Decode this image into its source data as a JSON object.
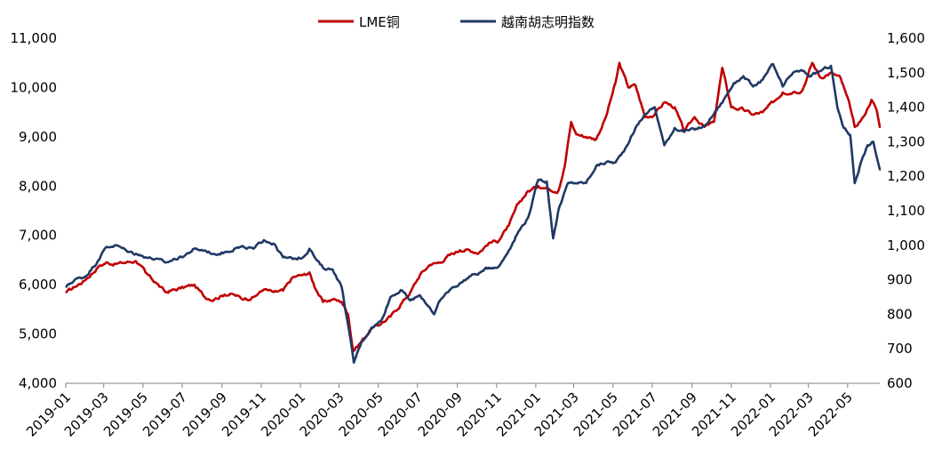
{
  "chart_data": {
    "type": "line",
    "title": "",
    "xlabel": "",
    "ylabel": "",
    "y2label": "",
    "grid": false,
    "legend_position": "top",
    "x_tick_labels": [
      "2019-01",
      "2019-03",
      "2019-05",
      "2019-07",
      "2019-09",
      "2019-11",
      "2020-01",
      "2020-03",
      "2020-05",
      "2020-07",
      "2020-09",
      "2020-11",
      "2021-01",
      "2021-03",
      "2021-05",
      "2021-07",
      "2021-09",
      "2021-11",
      "2022-01",
      "2022-03",
      "2022-05"
    ],
    "x_range": [
      "2019-01-01",
      "2022-06-20"
    ],
    "left_axis": {
      "ylim": [
        4000,
        11000
      ],
      "ticks": [
        4000,
        5000,
        6000,
        7000,
        8000,
        9000,
        10000,
        11000
      ],
      "tick_labels": [
        "4,000",
        "5,000",
        "6,000",
        "7,000",
        "8,000",
        "9,000",
        "10,000",
        "11,000"
      ]
    },
    "right_axis": {
      "ylim": [
        600,
        1600
      ],
      "ticks": [
        600,
        700,
        800,
        900,
        1000,
        1100,
        1200,
        1300,
        1400,
        1500,
        1600
      ],
      "tick_labels": [
        "600",
        "700",
        "800",
        "900",
        "1,000",
        "1,100",
        "1,200",
        "1,300",
        "1,400",
        "1,500",
        "1,600"
      ]
    },
    "series": [
      {
        "name": "LME铜",
        "axis": "left",
        "color": "#C00000",
        "points": [
          [
            "2019-01-02",
            5850
          ],
          [
            "2019-01-15",
            5950
          ],
          [
            "2019-02-01",
            6100
          ],
          [
            "2019-02-20",
            6350
          ],
          [
            "2019-03-05",
            6450
          ],
          [
            "2019-03-20",
            6420
          ],
          [
            "2019-04-05",
            6450
          ],
          [
            "2019-04-20",
            6480
          ],
          [
            "2019-05-05",
            6250
          ],
          [
            "2019-05-20",
            6050
          ],
          [
            "2019-06-05",
            5850
          ],
          [
            "2019-06-20",
            5900
          ],
          [
            "2019-07-05",
            5950
          ],
          [
            "2019-07-20",
            6000
          ],
          [
            "2019-08-05",
            5750
          ],
          [
            "2019-08-20",
            5700
          ],
          [
            "2019-09-05",
            5800
          ],
          [
            "2019-09-20",
            5800
          ],
          [
            "2019-10-05",
            5700
          ],
          [
            "2019-10-20",
            5750
          ],
          [
            "2019-11-05",
            5900
          ],
          [
            "2019-11-20",
            5850
          ],
          [
            "2019-12-05",
            5880
          ],
          [
            "2019-12-20",
            6150
          ],
          [
            "2020-01-05",
            6200
          ],
          [
            "2020-01-15",
            6250
          ],
          [
            "2020-01-25",
            5900
          ],
          [
            "2020-02-05",
            5650
          ],
          [
            "2020-02-20",
            5700
          ],
          [
            "2020-03-05",
            5650
          ],
          [
            "2020-03-15",
            5400
          ],
          [
            "2020-03-23",
            4650
          ],
          [
            "2020-04-05",
            4850
          ],
          [
            "2020-04-20",
            5100
          ],
          [
            "2020-05-05",
            5200
          ],
          [
            "2020-05-20",
            5350
          ],
          [
            "2020-06-05",
            5600
          ],
          [
            "2020-06-20",
            5850
          ],
          [
            "2020-07-05",
            6200
          ],
          [
            "2020-07-20",
            6400
          ],
          [
            "2020-08-05",
            6450
          ],
          [
            "2020-08-20",
            6600
          ],
          [
            "2020-09-05",
            6700
          ],
          [
            "2020-09-20",
            6700
          ],
          [
            "2020-10-05",
            6650
          ],
          [
            "2020-10-20",
            6850
          ],
          [
            "2020-11-05",
            6900
          ],
          [
            "2020-11-20",
            7200
          ],
          [
            "2020-12-05",
            7650
          ],
          [
            "2020-12-20",
            7900
          ],
          [
            "2021-01-05",
            8000
          ],
          [
            "2021-01-20",
            7950
          ],
          [
            "2021-02-05",
            7900
          ],
          [
            "2021-02-15",
            8400
          ],
          [
            "2021-02-25",
            9300
          ],
          [
            "2021-03-05",
            9050
          ],
          [
            "2021-03-20",
            9000
          ],
          [
            "2021-04-05",
            8950
          ],
          [
            "2021-04-20",
            9400
          ],
          [
            "2021-05-05",
            10100
          ],
          [
            "2021-05-11",
            10500
          ],
          [
            "2021-05-25",
            10000
          ],
          [
            "2021-06-05",
            10050
          ],
          [
            "2021-06-20",
            9400
          ],
          [
            "2021-07-05",
            9450
          ],
          [
            "2021-07-20",
            9700
          ],
          [
            "2021-08-05",
            9600
          ],
          [
            "2021-08-20",
            9100
          ],
          [
            "2021-09-05",
            9400
          ],
          [
            "2021-09-20",
            9200
          ],
          [
            "2021-10-05",
            9300
          ],
          [
            "2021-10-18",
            10400
          ],
          [
            "2021-11-01",
            9600
          ],
          [
            "2021-11-20",
            9550
          ],
          [
            "2021-12-05",
            9450
          ],
          [
            "2021-12-20",
            9500
          ],
          [
            "2022-01-05",
            9700
          ],
          [
            "2022-01-20",
            9900
          ],
          [
            "2022-02-05",
            9900
          ],
          [
            "2022-02-20",
            9950
          ],
          [
            "2022-03-07",
            10500
          ],
          [
            "2022-03-20",
            10200
          ],
          [
            "2022-04-05",
            10300
          ],
          [
            "2022-04-20",
            10200
          ],
          [
            "2022-05-05",
            9600
          ],
          [
            "2022-05-12",
            9200
          ],
          [
            "2022-05-25",
            9400
          ],
          [
            "2022-06-07",
            9750
          ],
          [
            "2022-06-15",
            9550
          ],
          [
            "2022-06-20",
            9200
          ]
        ]
      },
      {
        "name": "越南胡志明指数",
        "axis": "right",
        "color": "#203864",
        "points": [
          [
            "2019-01-02",
            880
          ],
          [
            "2019-01-15",
            900
          ],
          [
            "2019-02-01",
            910
          ],
          [
            "2019-02-20",
            955
          ],
          [
            "2019-03-05",
            995
          ],
          [
            "2019-03-20",
            1000
          ],
          [
            "2019-04-05",
            985
          ],
          [
            "2019-04-20",
            975
          ],
          [
            "2019-05-05",
            965
          ],
          [
            "2019-05-20",
            960
          ],
          [
            "2019-06-05",
            950
          ],
          [
            "2019-06-20",
            960
          ],
          [
            "2019-07-05",
            970
          ],
          [
            "2019-07-20",
            990
          ],
          [
            "2019-08-05",
            985
          ],
          [
            "2019-08-20",
            975
          ],
          [
            "2019-09-05",
            980
          ],
          [
            "2019-09-20",
            990
          ],
          [
            "2019-10-05",
            995
          ],
          [
            "2019-10-20",
            990
          ],
          [
            "2019-11-05",
            1015
          ],
          [
            "2019-11-20",
            1005
          ],
          [
            "2019-12-05",
            965
          ],
          [
            "2019-12-20",
            960
          ],
          [
            "2020-01-05",
            965
          ],
          [
            "2020-01-15",
            990
          ],
          [
            "2020-01-25",
            960
          ],
          [
            "2020-02-05",
            935
          ],
          [
            "2020-02-20",
            930
          ],
          [
            "2020-03-05",
            880
          ],
          [
            "2020-03-15",
            770
          ],
          [
            "2020-03-24",
            660
          ],
          [
            "2020-04-05",
            720
          ],
          [
            "2020-04-20",
            760
          ],
          [
            "2020-05-05",
            780
          ],
          [
            "2020-05-20",
            850
          ],
          [
            "2020-06-05",
            870
          ],
          [
            "2020-06-20",
            840
          ],
          [
            "2020-07-05",
            855
          ],
          [
            "2020-07-20",
            820
          ],
          [
            "2020-07-27",
            800
          ],
          [
            "2020-08-05",
            840
          ],
          [
            "2020-08-20",
            870
          ],
          [
            "2020-09-05",
            890
          ],
          [
            "2020-09-20",
            910
          ],
          [
            "2020-10-05",
            920
          ],
          [
            "2020-10-20",
            935
          ],
          [
            "2020-11-05",
            940
          ],
          [
            "2020-11-20",
            985
          ],
          [
            "2020-12-05",
            1040
          ],
          [
            "2020-12-20",
            1080
          ],
          [
            "2021-01-05",
            1190
          ],
          [
            "2021-01-18",
            1185
          ],
          [
            "2021-01-28",
            1020
          ],
          [
            "2021-02-05",
            1100
          ],
          [
            "2021-02-20",
            1180
          ],
          [
            "2021-03-05",
            1180
          ],
          [
            "2021-03-20",
            1180
          ],
          [
            "2021-04-05",
            1230
          ],
          [
            "2021-04-20",
            1240
          ],
          [
            "2021-05-05",
            1240
          ],
          [
            "2021-05-20",
            1280
          ],
          [
            "2021-06-05",
            1340
          ],
          [
            "2021-06-20",
            1380
          ],
          [
            "2021-07-05",
            1400
          ],
          [
            "2021-07-20",
            1290
          ],
          [
            "2021-08-05",
            1340
          ],
          [
            "2021-08-20",
            1330
          ],
          [
            "2021-09-05",
            1335
          ],
          [
            "2021-09-20",
            1345
          ],
          [
            "2021-10-05",
            1380
          ],
          [
            "2021-10-20",
            1420
          ],
          [
            "2021-11-05",
            1470
          ],
          [
            "2021-11-20",
            1490
          ],
          [
            "2021-12-05",
            1460
          ],
          [
            "2021-12-20",
            1480
          ],
          [
            "2022-01-05",
            1525
          ],
          [
            "2022-01-20",
            1460
          ],
          [
            "2022-02-05",
            1500
          ],
          [
            "2022-02-20",
            1505
          ],
          [
            "2022-03-05",
            1490
          ],
          [
            "2022-03-20",
            1505
          ],
          [
            "2022-04-05",
            1520
          ],
          [
            "2022-04-15",
            1400
          ],
          [
            "2022-04-25",
            1340
          ],
          [
            "2022-05-05",
            1320
          ],
          [
            "2022-05-12",
            1180
          ],
          [
            "2022-05-20",
            1230
          ],
          [
            "2022-06-01",
            1290
          ],
          [
            "2022-06-10",
            1300
          ],
          [
            "2022-06-20",
            1220
          ]
        ]
      }
    ]
  }
}
